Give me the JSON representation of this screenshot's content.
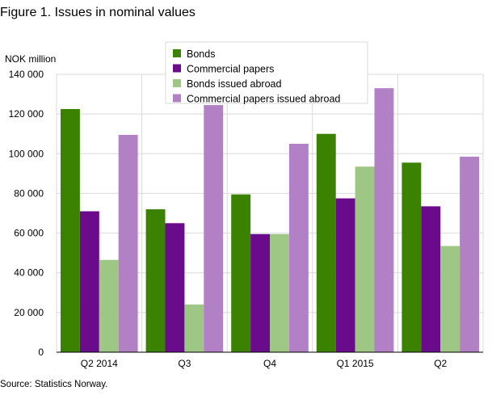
{
  "title": "Figure 1. Issues in nominal values",
  "source": "Source: Statistics Norway.",
  "chart_data": {
    "type": "bar",
    "ylabel": "NOK million",
    "xlabel": "",
    "ylim": [
      0,
      140000
    ],
    "yticks": [
      0,
      20000,
      40000,
      60000,
      80000,
      100000,
      120000,
      140000
    ],
    "ytick_labels": [
      "0",
      "20 000",
      "40 000",
      "60 000",
      "80 000",
      "100 000",
      "120 000",
      "140 000"
    ],
    "categories": [
      "Q2 2014",
      "Q3",
      "Q4",
      "Q1 2015",
      "Q2"
    ],
    "grid": true,
    "legend_position": "top-right",
    "series": [
      {
        "name": "Bonds",
        "color": "#3a8200",
        "values": [
          122500,
          72000,
          79500,
          110000,
          95500
        ]
      },
      {
        "name": "Commercial papers",
        "color": "#6a0b8b",
        "values": [
          71000,
          65000,
          59500,
          77500,
          73500
        ]
      },
      {
        "name": "Bonds issued abroad",
        "color": "#9ec685",
        "values": [
          46500,
          24000,
          59500,
          93500,
          53500
        ]
      },
      {
        "name": "Commercial papers issued abroad",
        "color": "#b280c4",
        "values": [
          109500,
          124500,
          105000,
          133000,
          98500
        ]
      }
    ]
  }
}
